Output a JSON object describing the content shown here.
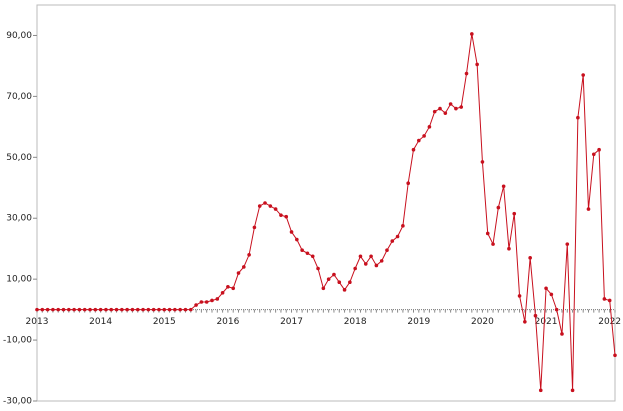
{
  "chart_data": {
    "type": "line",
    "categories": [
      "2013",
      null,
      null,
      null,
      null,
      null,
      null,
      null,
      null,
      null,
      null,
      null,
      "2014",
      null,
      null,
      null,
      null,
      null,
      null,
      null,
      null,
      null,
      null,
      null,
      "2015",
      null,
      null,
      null,
      null,
      null,
      null,
      null,
      null,
      null,
      null,
      null,
      "2016",
      null,
      null,
      null,
      null,
      null,
      null,
      null,
      null,
      null,
      null,
      null,
      "2017",
      null,
      null,
      null,
      null,
      null,
      null,
      null,
      null,
      null,
      null,
      null,
      "2018",
      null,
      null,
      null,
      null,
      null,
      null,
      null,
      null,
      null,
      null,
      null,
      "2019",
      null,
      null,
      null,
      null,
      null,
      null,
      null,
      null,
      null,
      null,
      null,
      "2020",
      null,
      null,
      null,
      null,
      null,
      null,
      null,
      null,
      null,
      null,
      null,
      "2021",
      null,
      null,
      null,
      null,
      null,
      null,
      null,
      null,
      null,
      null,
      null,
      "2022",
      null
    ],
    "values": [
      0,
      0,
      0,
      0,
      0,
      0,
      0,
      0,
      0,
      0,
      0,
      0,
      0,
      0,
      0,
      0,
      0,
      0,
      0,
      0,
      0,
      0,
      0,
      0,
      0,
      0,
      0,
      0,
      0,
      0,
      1.5,
      2.5,
      2.5,
      3,
      3.5,
      5.5,
      7.5,
      7,
      12,
      14,
      18,
      27,
      34,
      35,
      34,
      33,
      31,
      30.5,
      25.5,
      23,
      19.5,
      18.5,
      17.5,
      13.5,
      7,
      10,
      11.5,
      9,
      6.5,
      9,
      13.5,
      17.5,
      15,
      17.5,
      14.5,
      16,
      19.5,
      22.5,
      24,
      27.5,
      41.5,
      52.5,
      55.5,
      57,
      60,
      65,
      66,
      64.5,
      67.5,
      66,
      66.5,
      77.5,
      90.5,
      80.5,
      48.5,
      25,
      21.5,
      33.5,
      40.5,
      20,
      31.5,
      4.5,
      -4,
      17,
      -2,
      -26.5,
      7,
      5,
      0,
      -8,
      21.5,
      -26.5,
      63,
      77,
      33,
      51,
      52.5,
      3.5,
      3,
      -15
    ],
    "color": "#c8101e",
    "ylim": [
      -30,
      100
    ],
    "yticks": [
      {
        "value": -30,
        "label": "-30,00"
      },
      {
        "value": -10,
        "label": "-10,00"
      },
      {
        "value": 10,
        "label": "10,00"
      },
      {
        "value": 30,
        "label": "30,00"
      },
      {
        "value": 50,
        "label": "50,00"
      },
      {
        "value": 70,
        "label": "70,00"
      },
      {
        "value": 90,
        "label": "90,00"
      }
    ],
    "grid": false
  }
}
